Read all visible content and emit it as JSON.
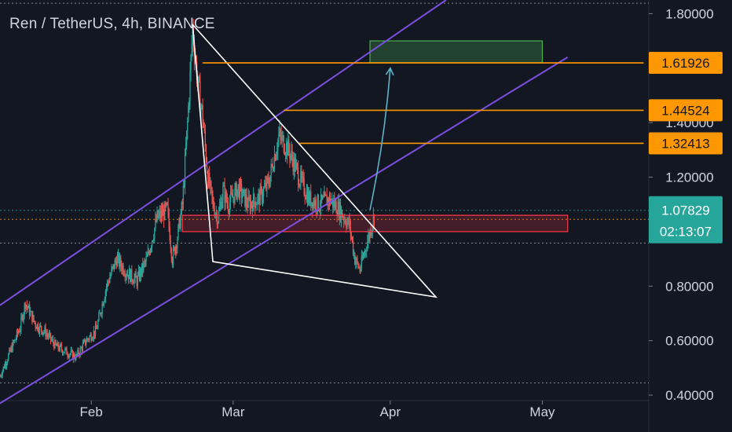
{
  "header": {
    "title": "Ren / TetherUS, 4h, BINANCE"
  },
  "colors": {
    "background": "#131722",
    "grid": "#2a2e39",
    "axis_text": "#d1d4dc",
    "up_candle": "#26a69a",
    "down_candle": "#ef5350",
    "channel": "#7b4fe0",
    "triangle": "#ffffff",
    "level_line": "#ff9800",
    "target_zone": "#4caf50",
    "support_zone": "#f23645",
    "arrow": "#5fb3c8",
    "current_price": "#26a69a"
  },
  "chart_data": {
    "type": "candlestick",
    "title": "Ren / TetherUS, 4h, BINANCE",
    "y_axis": {
      "ticks": [
        "1.80000",
        "1.40000",
        "1.20000",
        "0.80000",
        "0.60000",
        "0.40000"
      ],
      "tick_values": [
        1.8,
        1.4,
        1.2,
        0.8,
        0.6,
        0.4
      ],
      "range": [
        0.38,
        1.85
      ]
    },
    "x_axis": {
      "labels": [
        "Feb",
        "Mar",
        "Apr",
        "May"
      ],
      "dates": [
        "2021-02-01",
        "2021-03-01",
        "2021-04-01",
        "2021-05-01"
      ],
      "range": [
        "2021-01-14",
        "2021-05-22"
      ]
    },
    "price_labels": [
      {
        "text": "1.61926",
        "value": 1.61926,
        "kind": "level"
      },
      {
        "text": "1.44524",
        "value": 1.44524,
        "kind": "level"
      },
      {
        "text": "1.32413",
        "value": 1.32413,
        "kind": "level"
      }
    ],
    "current_price": {
      "price": "1.07829",
      "countdown": "02:13:07",
      "value": 1.07829
    },
    "annotations": {
      "level_lines": [
        {
          "value": 1.61926,
          "from": "2021-02-23",
          "to": "2021-05-21"
        },
        {
          "value": 1.44524,
          "from": "2021-03-11",
          "to": "2021-05-21"
        },
        {
          "value": 1.32413,
          "from": "2021-03-14",
          "to": "2021-05-21"
        }
      ],
      "target_zone": {
        "low": 1.62,
        "high": 1.7,
        "from": "2021-03-28",
        "to": "2021-05-01"
      },
      "support_zone": {
        "low": 1.0,
        "high": 1.06,
        "from": "2021-02-19",
        "to": "2021-05-06"
      },
      "channel_lines": [
        {
          "from": [
            "2021-01-14",
            0.73
          ],
          "to": [
            "2021-04-12",
            1.85
          ]
        },
        {
          "from": [
            "2021-01-14",
            0.37
          ],
          "to": [
            "2021-05-06",
            1.64
          ]
        }
      ],
      "triangle": [
        [
          "2021-02-21",
          1.76
        ],
        [
          "2021-04-10",
          0.76
        ],
        [
          "2021-02-25",
          0.89
        ]
      ],
      "arrow": {
        "from": [
          "2021-03-28",
          1.08
        ],
        "to": [
          "2021-04-01",
          1.6
        ]
      },
      "dotted_lines": [
        {
          "value": 1.078,
          "color": "#26a69a"
        },
        {
          "value": 1.045,
          "color": "#ff9800"
        },
        {
          "value": 0.958,
          "color": "#9598a1"
        },
        {
          "value": 0.445,
          "color": "#9598a1"
        },
        {
          "value": 1.838,
          "color": "#9598a1"
        }
      ]
    },
    "price_path": [
      [
        "2021-01-14",
        0.47
      ],
      [
        "2021-01-16",
        0.56
      ],
      [
        "2021-01-18",
        0.65
      ],
      [
        "2021-01-19",
        0.74
      ],
      [
        "2021-01-21",
        0.66
      ],
      [
        "2021-01-23",
        0.63
      ],
      [
        "2021-01-25",
        0.58
      ],
      [
        "2021-01-27",
        0.56
      ],
      [
        "2021-01-29",
        0.54
      ],
      [
        "2021-01-31",
        0.6
      ],
      [
        "2021-02-02",
        0.64
      ],
      [
        "2021-02-04",
        0.8
      ],
      [
        "2021-02-06",
        0.9
      ],
      [
        "2021-02-08",
        0.85
      ],
      [
        "2021-02-10",
        0.82
      ],
      [
        "2021-02-12",
        0.9
      ],
      [
        "2021-02-14",
        1.05
      ],
      [
        "2021-02-16",
        1.08
      ],
      [
        "2021-02-17",
        0.9
      ],
      [
        "2021-02-18",
        0.98
      ],
      [
        "2021-02-19",
        1.1
      ],
      [
        "2021-02-20",
        1.4
      ],
      [
        "2021-02-21",
        1.74
      ],
      [
        "2021-02-22",
        1.55
      ],
      [
        "2021-02-23",
        1.42
      ],
      [
        "2021-02-24",
        1.2
      ],
      [
        "2021-02-25",
        1.1
      ],
      [
        "2021-02-26",
        1.05
      ],
      [
        "2021-02-27",
        1.15
      ],
      [
        "2021-02-28",
        1.1
      ],
      [
        "2021-03-02",
        1.16
      ],
      [
        "2021-03-04",
        1.1
      ],
      [
        "2021-03-06",
        1.12
      ],
      [
        "2021-03-08",
        1.18
      ],
      [
        "2021-03-10",
        1.35
      ],
      [
        "2021-03-12",
        1.3
      ],
      [
        "2021-03-14",
        1.2
      ],
      [
        "2021-03-16",
        1.12
      ],
      [
        "2021-03-18",
        1.1
      ],
      [
        "2021-03-20",
        1.12
      ],
      [
        "2021-03-22",
        1.08
      ],
      [
        "2021-03-24",
        1.02
      ],
      [
        "2021-03-25",
        0.9
      ],
      [
        "2021-03-26",
        0.86
      ],
      [
        "2021-03-27",
        0.93
      ],
      [
        "2021-03-28",
        1.0
      ],
      [
        "2021-03-29",
        1.07
      ]
    ]
  }
}
